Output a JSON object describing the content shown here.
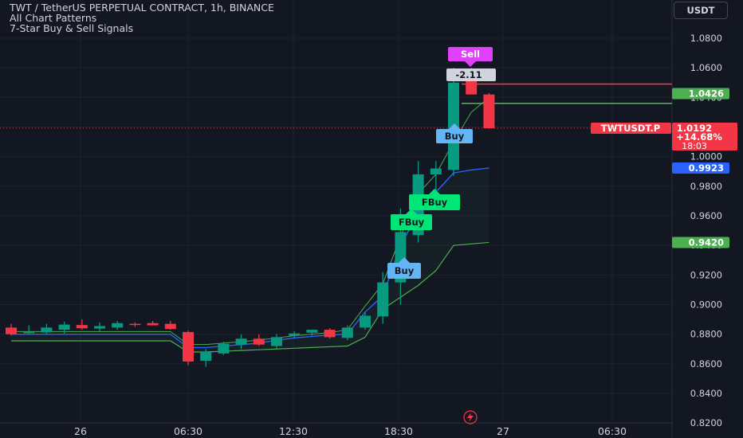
{
  "header": {
    "title": "TWT / TetherUS PERPETUAL CONTRACT, 1h, BINANCE",
    "indicator_1": "All Chart Patterns",
    "indicator_2": "7-Star Buy & Sell Signals"
  },
  "currency_button": "USDT",
  "chart_data": {
    "type": "candlestick",
    "symbol": "TWTUSDT.P",
    "x_tick_labels": [
      "26",
      "06:30",
      "12:30",
      "18:30",
      "27",
      "06:30"
    ],
    "y_tick_labels": [
      "1.0800",
      "1.0600",
      "1.0400",
      "1.0200",
      "1.0000",
      "0.9800",
      "0.9600",
      "0.9400",
      "0.9200",
      "0.9000",
      "0.8800",
      "0.8600",
      "0.8400",
      "0.8200"
    ],
    "ylim": [
      0.82,
      1.09
    ],
    "candles": [
      {
        "o": 0.8845,
        "h": 0.887,
        "l": 0.879,
        "c": 0.88
      },
      {
        "o": 0.881,
        "h": 0.886,
        "l": 0.8795,
        "c": 0.8815
      },
      {
        "o": 0.8812,
        "h": 0.887,
        "l": 0.88,
        "c": 0.8845
      },
      {
        "o": 0.883,
        "h": 0.8885,
        "l": 0.8805,
        "c": 0.8865
      },
      {
        "o": 0.8862,
        "h": 0.89,
        "l": 0.883,
        "c": 0.884
      },
      {
        "o": 0.8838,
        "h": 0.888,
        "l": 0.882,
        "c": 0.8855
      },
      {
        "o": 0.8845,
        "h": 0.889,
        "l": 0.883,
        "c": 0.8875
      },
      {
        "o": 0.887,
        "h": 0.888,
        "l": 0.885,
        "c": 0.8865
      },
      {
        "o": 0.8875,
        "h": 0.889,
        "l": 0.886,
        "c": 0.886
      },
      {
        "o": 0.887,
        "h": 0.889,
        "l": 0.883,
        "c": 0.8835
      },
      {
        "o": 0.8815,
        "h": 0.8825,
        "l": 0.859,
        "c": 0.8615
      },
      {
        "o": 0.862,
        "h": 0.87,
        "l": 0.858,
        "c": 0.868
      },
      {
        "o": 0.867,
        "h": 0.875,
        "l": 0.866,
        "c": 0.8735
      },
      {
        "o": 0.873,
        "h": 0.88,
        "l": 0.87,
        "c": 0.877
      },
      {
        "o": 0.877,
        "h": 0.88,
        "l": 0.872,
        "c": 0.873
      },
      {
        "o": 0.872,
        "h": 0.88,
        "l": 0.87,
        "c": 0.878
      },
      {
        "o": 0.879,
        "h": 0.882,
        "l": 0.877,
        "c": 0.8805
      },
      {
        "o": 0.881,
        "h": 0.883,
        "l": 0.879,
        "c": 0.883
      },
      {
        "o": 0.883,
        "h": 0.884,
        "l": 0.877,
        "c": 0.878
      },
      {
        "o": 0.8775,
        "h": 0.886,
        "l": 0.876,
        "c": 0.8845
      },
      {
        "o": 0.8845,
        "h": 0.895,
        "l": 0.883,
        "c": 0.8925
      },
      {
        "o": 0.892,
        "h": 0.922,
        "l": 0.887,
        "c": 0.915
      },
      {
        "o": 0.915,
        "h": 0.965,
        "l": 0.9,
        "c": 0.949
      },
      {
        "o": 0.947,
        "h": 0.997,
        "l": 0.942,
        "c": 0.988
      },
      {
        "o": 0.988,
        "h": 0.997,
        "l": 0.976,
        "c": 0.992
      },
      {
        "o": 0.991,
        "h": 1.06,
        "l": 0.987,
        "c": 1.05
      },
      {
        "o": 1.058,
        "h": 1.06,
        "l": 1.043,
        "c": 1.042
      },
      {
        "o": 1.042,
        "h": 1.043,
        "l": 1.019,
        "c": 1.0192
      }
    ],
    "upper_band": [
      0.88,
      0.88,
      0.88,
      0.88,
      0.88,
      0.88,
      0.88,
      0.88,
      0.88,
      0.88,
      0.871,
      0.871,
      0.872,
      0.873,
      0.874,
      0.876,
      0.8775,
      0.8785,
      0.8795,
      0.88,
      0.895,
      0.906,
      0.94,
      0.962,
      0.976,
      0.989,
      0.991,
      0.9923
    ],
    "lower_band": [
      0.8755,
      0.8755,
      0.8755,
      0.8755,
      0.8755,
      0.8755,
      0.8755,
      0.8755,
      0.8755,
      0.8755,
      0.868,
      0.868,
      0.8685,
      0.869,
      0.8695,
      0.87,
      0.8705,
      0.871,
      0.8715,
      0.872,
      0.878,
      0.897,
      0.905,
      0.913,
      0.923,
      0.94,
      0.941,
      0.942
    ],
    "mid_line": [
      0.8818,
      0.8818,
      0.8818,
      0.8818,
      0.8818,
      0.8818,
      0.8818,
      0.8818,
      0.8818,
      0.8818,
      0.873,
      0.873,
      0.874,
      0.875,
      0.876,
      0.8775,
      0.879,
      0.88,
      0.881,
      0.883,
      0.899,
      0.914,
      0.946,
      0.975,
      0.988,
      1.01,
      1.03,
      1.04
    ],
    "horizontal_lines": [
      {
        "value": 1.049,
        "color": "#f23645"
      },
      {
        "value": 1.036,
        "color": "#4caf50"
      }
    ],
    "signals": [
      {
        "label": "Sell",
        "color": "#e040fb",
        "candle": 26
      },
      {
        "label": "-2.11",
        "color": "#d1d4dc",
        "candle": 26
      },
      {
        "label": "Buy",
        "color": "#64b5f6",
        "candle": 26
      },
      {
        "label": "FBuy",
        "color": "#00e676",
        "candle": 25
      },
      {
        "label": "FBuy",
        "color": "#00e676",
        "candle": 23
      },
      {
        "label": "Buy",
        "color": "#64b5f6",
        "candle": 22
      }
    ],
    "price_tags": [
      {
        "value": "1.0426",
        "price": 1.0426,
        "bg": "#4caf50",
        "fg": "#ffffff"
      },
      {
        "value": "1.0192",
        "price": 1.0192,
        "bg": "#f23645",
        "fg": "#ffffff"
      },
      {
        "value": "0.9923",
        "price": 0.9923,
        "bg": "#2962ff",
        "fg": "#ffffff"
      },
      {
        "value": "0.9420",
        "price": 0.942,
        "bg": "#4caf50",
        "fg": "#ffffff"
      }
    ],
    "current_price": {
      "symbol": "TWTUSDT.P",
      "price": "1.0192",
      "change": "+14.68%",
      "countdown": "18:03"
    },
    "colors": {
      "up": "#089981",
      "down": "#f23645",
      "background": "#131722",
      "grid": "#1e222d"
    }
  }
}
